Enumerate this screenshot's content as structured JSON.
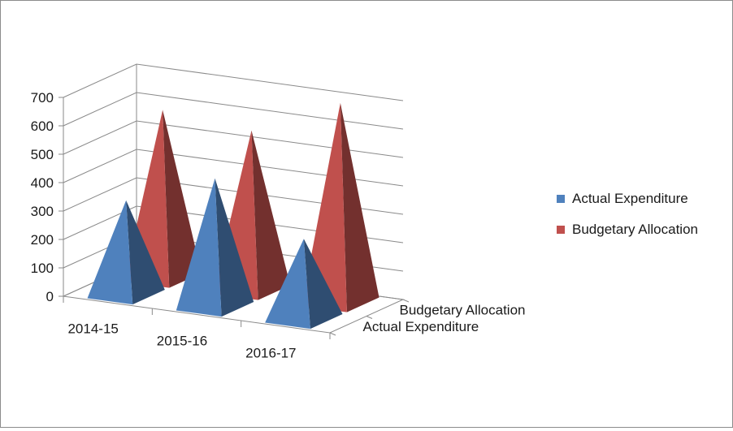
{
  "chart_data": {
    "type": "bar",
    "style": "3d-pyramid",
    "categories": [
      "2014-15",
      "2015-16",
      "2016-17"
    ],
    "series": [
      {
        "name": "Actual Expenditure",
        "values": [
          330,
          450,
          280
        ],
        "color": "#4f81bd"
      },
      {
        "name": "Budgetary Allocation",
        "values": [
          590,
          560,
          700
        ],
        "color": "#c0504d"
      }
    ],
    "depth_labels": [
      "Budgetary Allocation",
      "Actual Expenditure"
    ],
    "y_ticks": [
      "0",
      "100",
      "200",
      "300",
      "400",
      "500",
      "600",
      "700"
    ],
    "ylim": [
      0,
      700
    ],
    "grid": true,
    "legend_position": "right"
  }
}
